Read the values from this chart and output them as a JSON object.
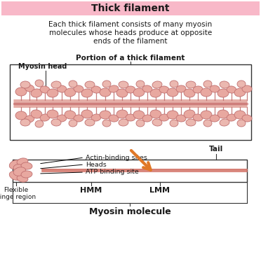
{
  "title": "Thick filament",
  "title_bg": "#f8b8c8",
  "subtitle_line1": "Each thick filament consists of many myosin",
  "subtitle_line2": "molecules whose heads produce at opposite",
  "subtitle_line3": "ends of the filament",
  "section_label": "Portion of a thick filament",
  "myosin_head_label": "Myosin head",
  "label_actin": "Actin-binding sites",
  "label_heads": "Heads",
  "label_atp": "ATP binding site",
  "label_flexible": "Flexible\nhinge region",
  "label_hmm": "HMM",
  "label_lmm": "LMM",
  "label_tail": "Tail",
  "bottom_label": "Myosin molecule",
  "filament_color": "#d4756a",
  "head_color": "#e8a8a0",
  "head_edge": "#c07070",
  "bg_color": "#ffffff",
  "text_color": "#1a1a1a",
  "arrow_color": "#e07828",
  "box_color": "#333333"
}
